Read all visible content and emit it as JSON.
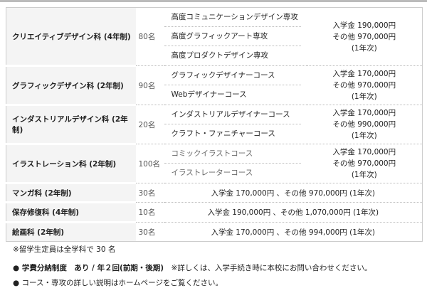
{
  "departments": [
    {
      "name": "クリエイティブデザイン科 (4年制)",
      "count": "80名",
      "courses": [
        "高度コミュニケーションデザイン専攻",
        "高度グラフィックアート専攻",
        "高度プロダクトデザイン専攻"
      ],
      "fee": [
        "入学金 190,000円",
        "その他 970,000円",
        "(1年次)"
      ]
    },
    {
      "name": "グラフィックデザイン科 (2年制)",
      "count": "90名",
      "courses": [
        "グラフィックデザイナーコース",
        "Webデザイナーコース"
      ],
      "fee": [
        "入学金 170,000円",
        "その他 970,000円",
        "(1年次)"
      ]
    },
    {
      "name": "インダストリアルデザイン科 (2年制)",
      "count": "20名",
      "courses": [
        "インダストリアルデザイナーコース",
        "クラフト・ファニチャーコース"
      ],
      "fee": [
        "入学金 170,000円",
        "その他 990,000円",
        "(1年次)"
      ]
    },
    {
      "name": "イラストレーション科 (2年制)",
      "count": "100名",
      "courses": [
        "コミックイラストコース",
        "イラストレーターコース"
      ],
      "fee": [
        "入学金 170,000円",
        "その他 970,000円",
        "(1年次)"
      ]
    }
  ],
  "single_departments": [
    {
      "name": "マンガ科 (2年制)",
      "count": "30名",
      "fee": "入学金 170,000円 、その他 970,000円 (1年次)"
    },
    {
      "name": "保存修復科 (4年制)",
      "count": "10名",
      "fee": "入学金 190,000円 、その他 1,070,000円 (1年次)"
    },
    {
      "name": "絵画科 (2年制)",
      "count": "30名",
      "fee": "入学金 170,000円 、その他 994,000円 (1年次)"
    }
  ],
  "notes": {
    "intl": "※留学生定員は全学科で 30 名",
    "installment_label": "● 学費分納制度　あり / 年２回(前期・後期)",
    "installment_note": "　※詳しくは、入学手続き時に本校にお問い合わせください。",
    "homepage": "● コース・専攻の詳しい説明はホームページをご覧ください。"
  }
}
